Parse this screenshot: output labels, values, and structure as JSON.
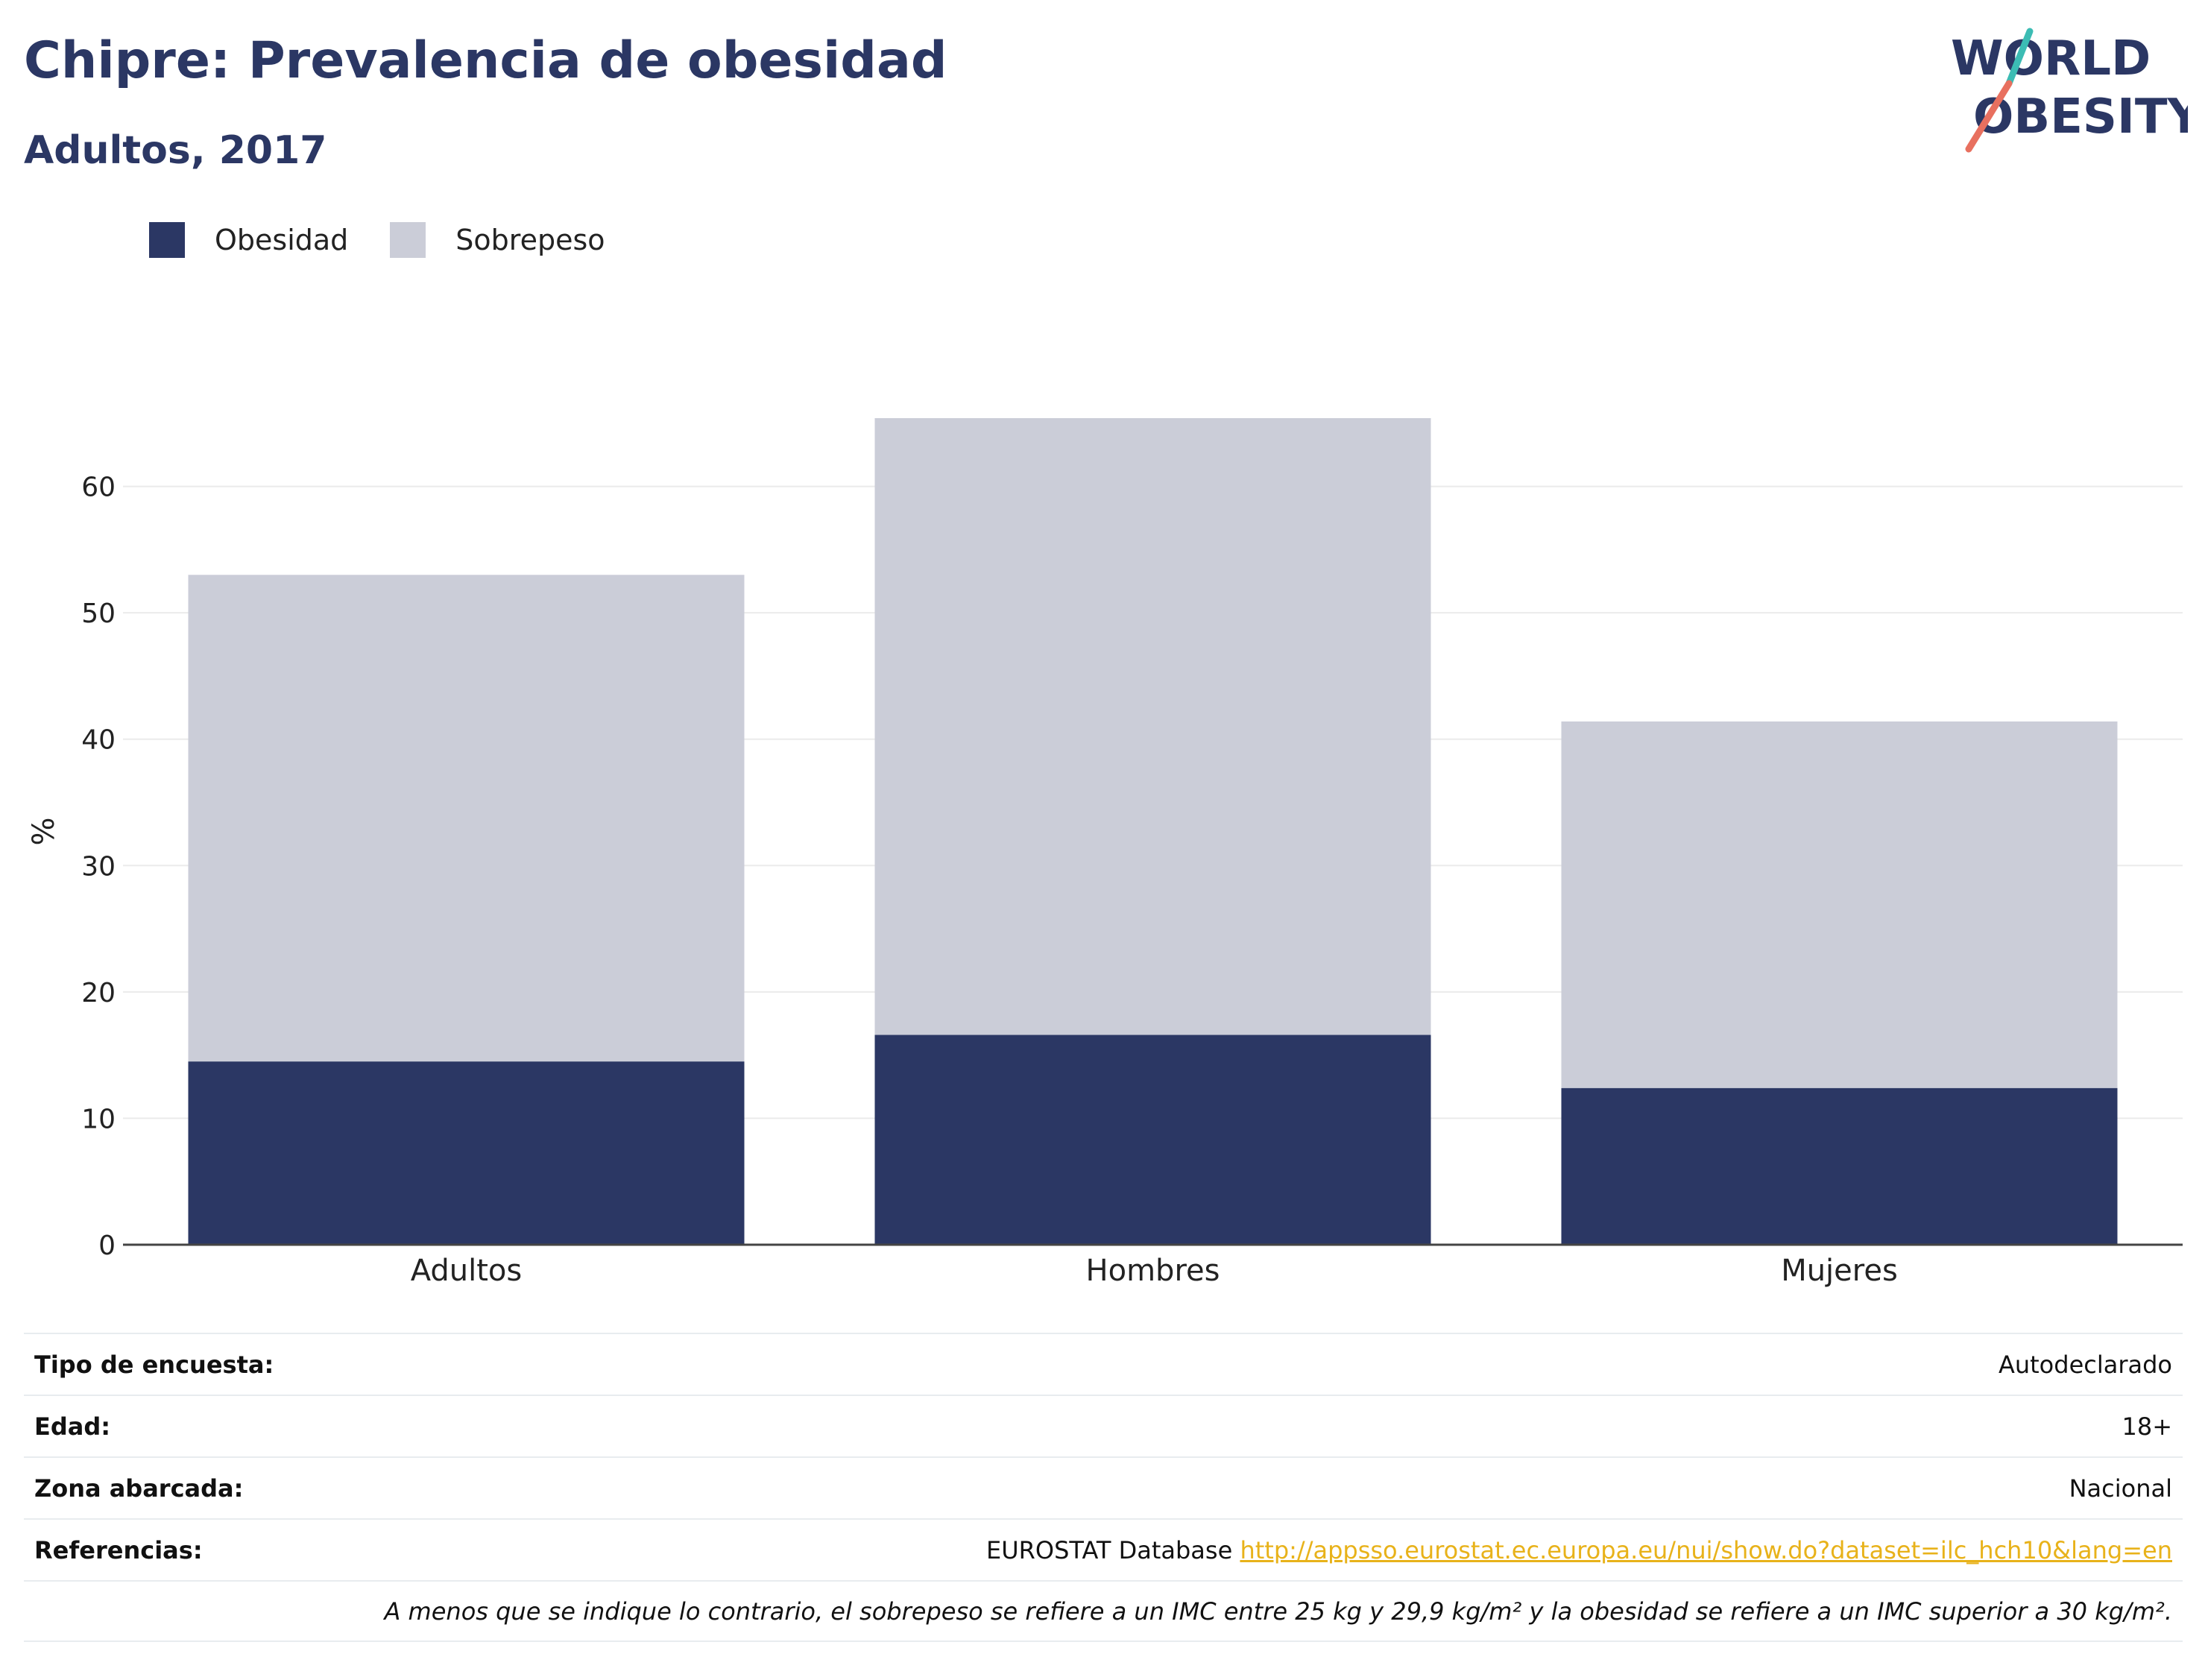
{
  "header": {
    "title": "Chipre: Prevalencia de obesidad",
    "subtitle": "Adultos, 2017"
  },
  "logo": {
    "line1": "WORLD",
    "line2": "OBESITY"
  },
  "chart_data": {
    "type": "bar",
    "stacked": true,
    "categories": [
      "Adultos",
      "Hombres",
      "Mujeres"
    ],
    "series": [
      {
        "name": "Obesidad",
        "color": "#2b3764",
        "values": [
          14.5,
          16.6,
          12.4
        ]
      },
      {
        "name": "Sobrepeso",
        "color": "#cbcdd8",
        "values": [
          38.5,
          48.8,
          29.0
        ]
      }
    ],
    "ylabel": "%",
    "ylim": [
      0,
      65.4
    ],
    "yticks": [
      0,
      10,
      20,
      30,
      40,
      50,
      60
    ],
    "grid": true,
    "legend": "top-left"
  },
  "info": {
    "rows": [
      {
        "label": "Tipo de encuesta:",
        "value": "Autodeclarado"
      },
      {
        "label": "Edad:",
        "value": "18+"
      },
      {
        "label": "Zona abarcada:",
        "value": "Nacional"
      }
    ],
    "references": {
      "label": "Referencias:",
      "text": "EUROSTAT Database",
      "link": "http://appsso.eurostat.ec.europa.eu/nui/show.do?dataset=ilc_hch10&lang=en"
    },
    "footnote": "A menos que se indique lo contrario, el sobrepeso se refiere a un IMC entre 25 kg y 29,9 kg/m² y la obesidad se refiere a un IMC superior a 30 kg/m²."
  }
}
